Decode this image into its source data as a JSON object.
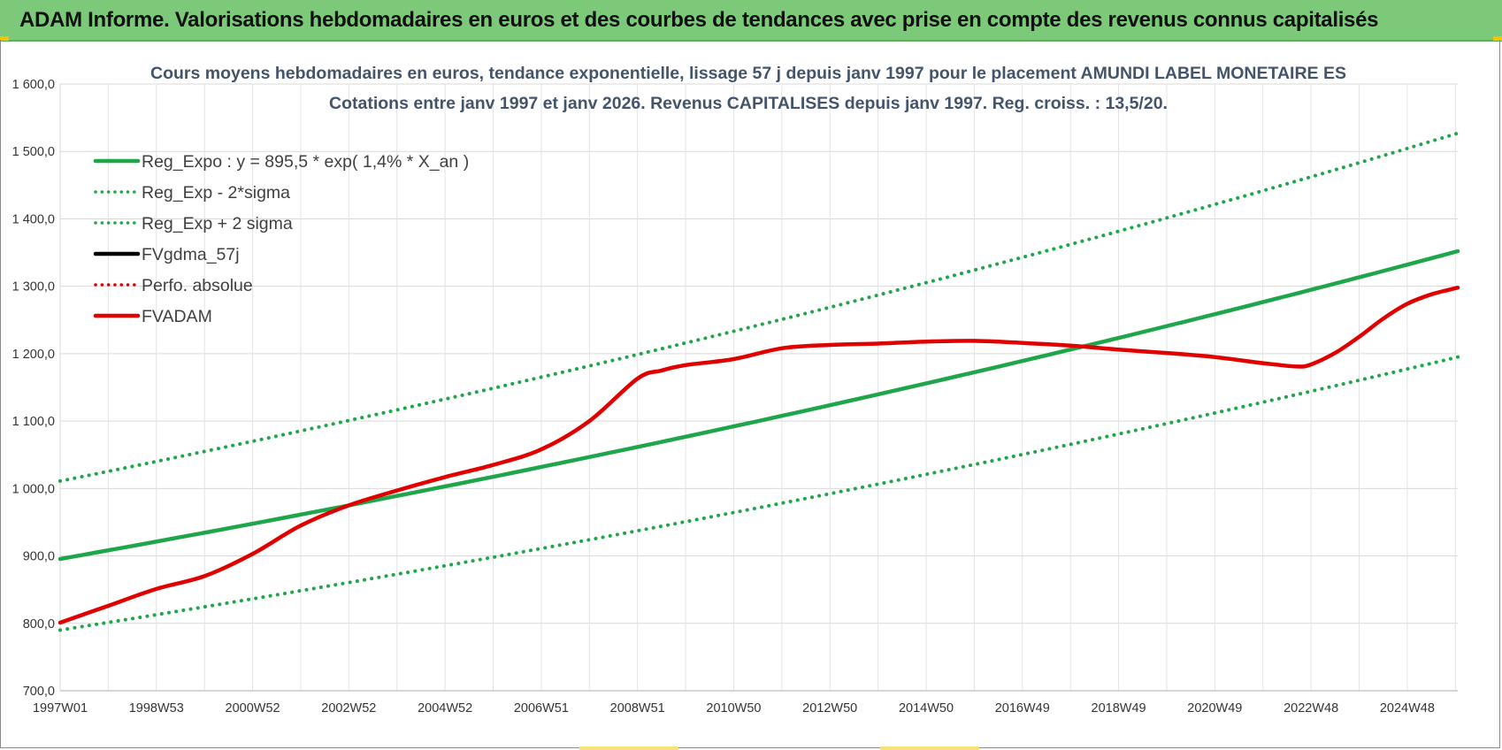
{
  "header": {
    "title": "ADAM Informe. Valorisations hebdomadaires en euros et des courbes de tendances avec prise en compte des revenus connus capitalisés"
  },
  "chart_data": {
    "type": "line",
    "title_line1": "Cours moyens hebdomadaires en euros, tendance exponentielle, lissage 57 j depuis janv 1997 pour le placement AMUNDI LABEL MONETAIRE ES",
    "title_line2": "Cotations entre janv 1997 et janv 2026. Revenus CAPITALISES depuis janv 1997. Reg. croiss. : 13,5/20.",
    "ylim": [
      700,
      1600
    ],
    "y_ticks": [
      "700,0",
      "800,0",
      "900,0",
      "1 000,0",
      "1 100,0",
      "1 200,0",
      "1 300,0",
      "1 400,0",
      "1 500,0",
      "1 600,0"
    ],
    "y_tick_values": [
      700,
      800,
      900,
      1000,
      1100,
      1200,
      1300,
      1400,
      1500,
      1600
    ],
    "x_range": [
      1997.0,
      2026.05
    ],
    "x_ticks": [
      "1997W01",
      "1998W53",
      "2000W52",
      "2002W52",
      "2004W52",
      "2006W51",
      "2008W51",
      "2010W50",
      "2012W50",
      "2014W50",
      "2016W49",
      "2018W49",
      "2020W49",
      "2022W48",
      "2024W48"
    ],
    "x_tick_years": [
      1997.0,
      1999.0,
      2001.0,
      2003.0,
      2005.0,
      2007.0,
      2009.0,
      2011.0,
      2013.0,
      2015.0,
      2017.0,
      2019.0,
      2021.0,
      2023.0,
      2025.0
    ],
    "grid": true,
    "legend_position": "top-left",
    "series": [
      {
        "name": "Reg_Expo : y = 895,5 * exp( 1,4% *  X_an )",
        "color": "#1fa64a",
        "style": "solid",
        "x": [
          1997.0,
          2026.05
        ],
        "y": [
          895.5,
          1352
        ]
      },
      {
        "name": "Reg_Exp - 2*sigma",
        "color": "#1fa64a",
        "style": "dotted",
        "x": [
          1997.0,
          2026.05
        ],
        "y": [
          790,
          1195
        ]
      },
      {
        "name": "Reg_Exp + 2 sigma",
        "color": "#1fa64a",
        "style": "dotted",
        "x": [
          1997.0,
          2026.05
        ],
        "y": [
          1011,
          1527
        ]
      },
      {
        "name": "FVgdma_57j",
        "color": "#000000",
        "style": "solid",
        "x": [],
        "y": []
      },
      {
        "name": "Perfo. absolue",
        "color": "#e00000",
        "style": "dotted",
        "x": [],
        "y": []
      },
      {
        "name": "FVADAM",
        "color": "#e00000",
        "style": "solid",
        "x": [
          1997.0,
          1998.0,
          1999.0,
          2000.0,
          2001.0,
          2002.0,
          2003.0,
          2004.0,
          2005.0,
          2006.0,
          2007.0,
          2008.0,
          2009.0,
          2009.5,
          2010.0,
          2011.0,
          2012.0,
          2013.0,
          2014.0,
          2015.0,
          2016.0,
          2017.0,
          2018.0,
          2019.0,
          2020.0,
          2021.0,
          2022.0,
          2022.7,
          2023.0,
          2023.5,
          2024.0,
          2024.5,
          2025.0,
          2025.5,
          2026.05
        ],
        "y": [
          801,
          826,
          851,
          870,
          903,
          945,
          975,
          997,
          1017,
          1035,
          1058,
          1100,
          1163,
          1175,
          1183,
          1192,
          1208,
          1213,
          1215,
          1218,
          1219,
          1216,
          1212,
          1206,
          1201,
          1195,
          1186,
          1181,
          1184,
          1201,
          1225,
          1252,
          1274,
          1288,
          1298
        ]
      }
    ]
  }
}
